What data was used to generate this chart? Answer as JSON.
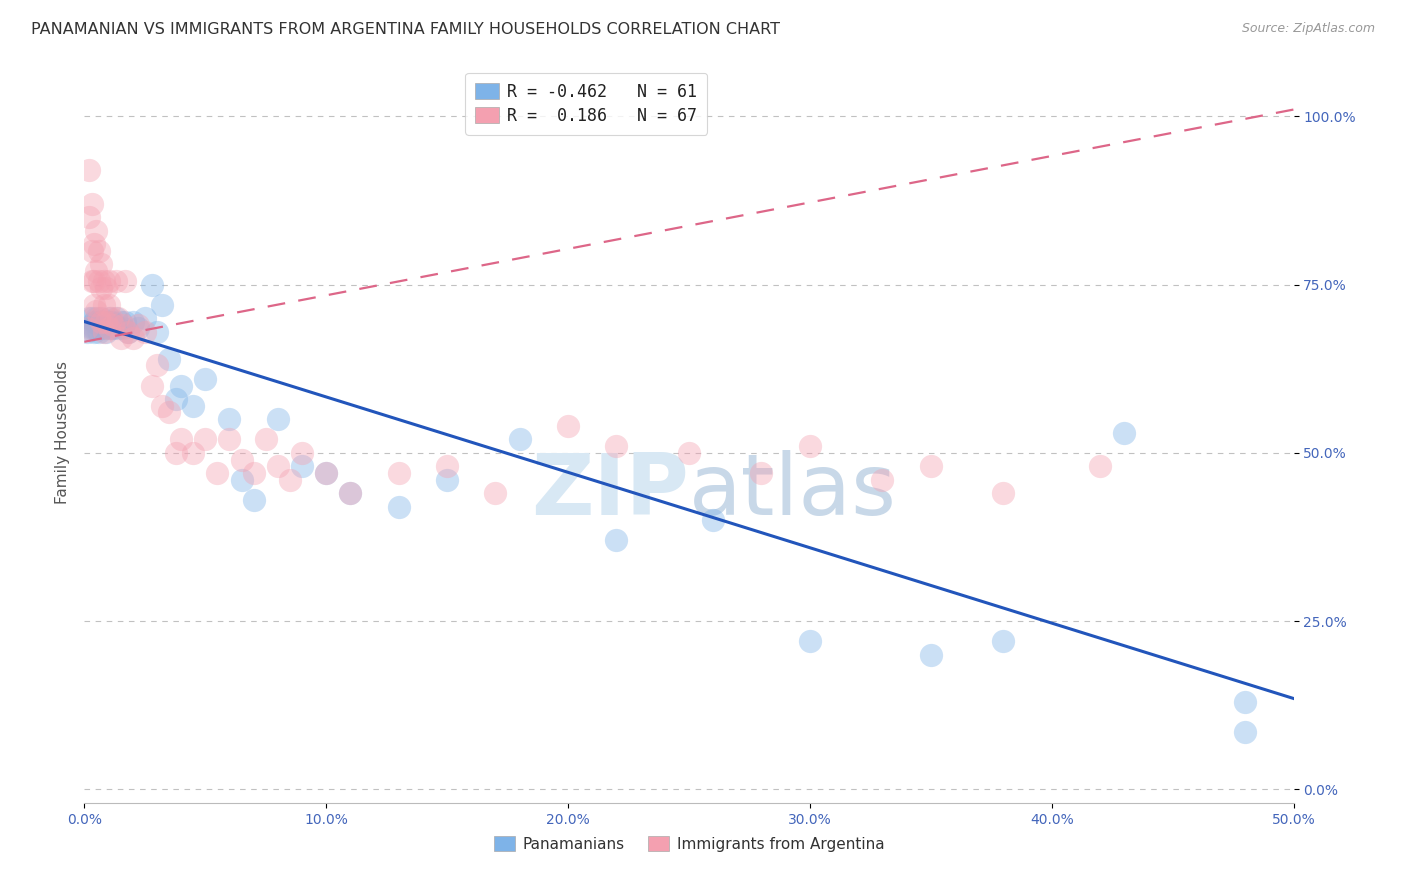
{
  "title": "PANAMANIAN VS IMMIGRANTS FROM ARGENTINA FAMILY HOUSEHOLDS CORRELATION CHART",
  "source": "Source: ZipAtlas.com",
  "ylabel": "Family Households",
  "xlim": [
    0.0,
    0.5
  ],
  "ylim": [
    -0.02,
    1.08
  ],
  "blue_R": "-0.462",
  "blue_N": "61",
  "pink_R": "0.186",
  "pink_N": "67",
  "blue_color": "#7EB3E8",
  "pink_color": "#F4A0B0",
  "trend_blue_color": "#2255BB",
  "trend_pink_color": "#DD6688",
  "grid_color": "#BBBBBB",
  "title_color": "#333333",
  "axis_tick_color": "#4466BB",
  "watermark_color": "#D8E8F4",
  "legend_label_blue": "Panamanians",
  "legend_label_pink": "Immigrants from Argentina",
  "blue_trend_x0": 0.0,
  "blue_trend_y0": 0.695,
  "blue_trend_x1": 0.5,
  "blue_trend_y1": 0.135,
  "pink_trend_x0": 0.0,
  "pink_trend_y0": 0.665,
  "pink_trend_x1": 0.5,
  "pink_trend_y1": 1.01,
  "blue_x": [
    0.001,
    0.002,
    0.003,
    0.003,
    0.004,
    0.004,
    0.004,
    0.005,
    0.005,
    0.005,
    0.006,
    0.006,
    0.007,
    0.007,
    0.007,
    0.008,
    0.008,
    0.009,
    0.009,
    0.01,
    0.01,
    0.01,
    0.011,
    0.011,
    0.012,
    0.012,
    0.013,
    0.014,
    0.015,
    0.016,
    0.017,
    0.018,
    0.02,
    0.022,
    0.025,
    0.028,
    0.03,
    0.032,
    0.035,
    0.038,
    0.04,
    0.045,
    0.05,
    0.06,
    0.065,
    0.07,
    0.08,
    0.09,
    0.1,
    0.11,
    0.13,
    0.15,
    0.18,
    0.22,
    0.26,
    0.3,
    0.35,
    0.38,
    0.43,
    0.48,
    0.48
  ],
  "blue_y": [
    0.68,
    0.7,
    0.685,
    0.7,
    0.685,
    0.695,
    0.68,
    0.7,
    0.685,
    0.695,
    0.68,
    0.695,
    0.7,
    0.685,
    0.695,
    0.685,
    0.695,
    0.68,
    0.695,
    0.685,
    0.695,
    0.7,
    0.685,
    0.695,
    0.685,
    0.695,
    0.7,
    0.685,
    0.695,
    0.685,
    0.695,
    0.68,
    0.695,
    0.685,
    0.7,
    0.75,
    0.68,
    0.72,
    0.64,
    0.58,
    0.6,
    0.57,
    0.61,
    0.55,
    0.46,
    0.43,
    0.55,
    0.48,
    0.47,
    0.44,
    0.42,
    0.46,
    0.52,
    0.37,
    0.4,
    0.22,
    0.2,
    0.22,
    0.53,
    0.13,
    0.085
  ],
  "pink_x": [
    0.001,
    0.002,
    0.002,
    0.003,
    0.003,
    0.003,
    0.004,
    0.004,
    0.004,
    0.005,
    0.005,
    0.005,
    0.006,
    0.006,
    0.006,
    0.007,
    0.007,
    0.007,
    0.008,
    0.008,
    0.008,
    0.009,
    0.009,
    0.01,
    0.01,
    0.01,
    0.011,
    0.012,
    0.013,
    0.014,
    0.015,
    0.016,
    0.017,
    0.018,
    0.02,
    0.022,
    0.025,
    0.028,
    0.03,
    0.032,
    0.035,
    0.038,
    0.04,
    0.045,
    0.05,
    0.055,
    0.06,
    0.065,
    0.07,
    0.075,
    0.08,
    0.085,
    0.09,
    0.1,
    0.11,
    0.13,
    0.15,
    0.17,
    0.2,
    0.22,
    0.25,
    0.28,
    0.3,
    0.33,
    0.35,
    0.38,
    0.42
  ],
  "pink_y": [
    0.685,
    0.92,
    0.85,
    0.87,
    0.8,
    0.755,
    0.81,
    0.755,
    0.72,
    0.83,
    0.77,
    0.71,
    0.8,
    0.755,
    0.7,
    0.78,
    0.745,
    0.695,
    0.755,
    0.72,
    0.68,
    0.745,
    0.695,
    0.755,
    0.72,
    0.685,
    0.7,
    0.69,
    0.755,
    0.7,
    0.67,
    0.69,
    0.755,
    0.68,
    0.67,
    0.69,
    0.68,
    0.6,
    0.63,
    0.57,
    0.56,
    0.5,
    0.52,
    0.5,
    0.52,
    0.47,
    0.52,
    0.49,
    0.47,
    0.52,
    0.48,
    0.46,
    0.5,
    0.47,
    0.44,
    0.47,
    0.48,
    0.44,
    0.54,
    0.51,
    0.5,
    0.47,
    0.51,
    0.46,
    0.48,
    0.44,
    0.48
  ]
}
